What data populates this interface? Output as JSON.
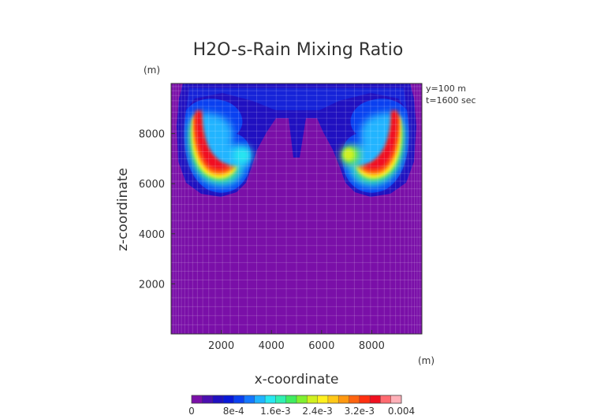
{
  "chart_data": {
    "type": "heatmap",
    "title": "H2O-s-Rain Mixing Ratio",
    "xlabel": "x-coordinate",
    "ylabel": "z-coordinate",
    "x_unit": "(m)",
    "y_unit": "(m)",
    "annotations": [
      "y=100 m",
      "t=1600 sec"
    ],
    "xlim": [
      0,
      10000
    ],
    "ylim": [
      0,
      10000
    ],
    "xticks": [
      2000,
      4000,
      6000,
      8000
    ],
    "yticks": [
      2000,
      4000,
      6000,
      8000
    ],
    "colorbar": {
      "min": 0,
      "max": 0.004,
      "tick_labels": [
        "0",
        "8e-4",
        "1.6e-3",
        "2.4e-3",
        "3.2e-3",
        "0.004"
      ],
      "colors": [
        "#7a0fa8",
        "#4b0fb0",
        "#2010c0",
        "#0818d8",
        "#0a40f0",
        "#1478ff",
        "#20b4ff",
        "#28e8f0",
        "#30f0b0",
        "#40ec60",
        "#80f030",
        "#d0f020",
        "#fff020",
        "#ffc818",
        "#ff9810",
        "#ff6410",
        "#ff3010",
        "#f01020",
        "#ff6a70",
        "#ffb0b8"
      ]
    },
    "features": [
      {
        "name": "left-arc",
        "peak_value": 0.0033
      },
      {
        "name": "right-arc",
        "peak_value": 0.0031
      },
      {
        "name": "background",
        "value": 0
      }
    ],
    "grid": true
  }
}
